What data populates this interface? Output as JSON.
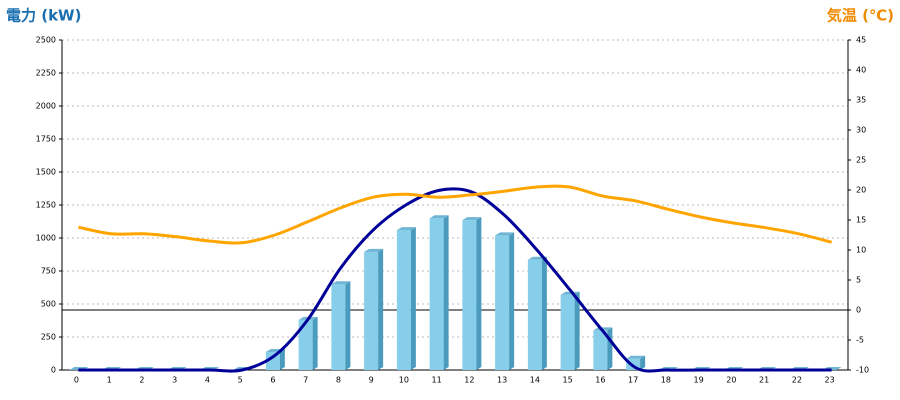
{
  "chart_data": {
    "type": "bar_line",
    "y_label": "電力 (kW)",
    "y2_label": "気温 (℃)",
    "categories": [
      "0",
      "1",
      "2",
      "3",
      "4",
      "5",
      "6",
      "7",
      "8",
      "9",
      "10",
      "11",
      "12",
      "13",
      "14",
      "15",
      "16",
      "17",
      "18",
      "19",
      "20",
      "21",
      "22",
      "23"
    ],
    "series": [
      {
        "type": "bar",
        "color": "#87ceeb",
        "values": [
          0,
          0,
          0,
          0,
          0,
          0,
          136,
          380,
          650,
          895,
          1060,
          1150,
          1135,
          1020,
          835,
          570,
          300,
          85,
          0,
          0,
          0,
          0,
          0,
          0
        ]
      },
      {
        "type": "line",
        "color": "#000099",
        "values": [
          0,
          0,
          0,
          0,
          0,
          0,
          110,
          380,
          770,
          1060,
          1250,
          1360,
          1350,
          1175,
          910,
          610,
          300,
          20,
          0,
          0,
          0,
          0,
          0,
          0
        ]
      },
      {
        "type": "line",
        "color": "#ffa500",
        "axis": "y2",
        "values": [
          13.8,
          12.7,
          12.7,
          12.2,
          11.5,
          11.2,
          12.5,
          14.7,
          17,
          18.8,
          19.3,
          18.8,
          19.2,
          19.8,
          20.5,
          20.5,
          19,
          18.2,
          16.8,
          15.5,
          14.5,
          13.7,
          12.7,
          11.3
        ]
      }
    ],
    "ylim": [
      0,
      2500
    ],
    "yticks": [
      0,
      250,
      500,
      750,
      1000,
      1250,
      1500,
      1750,
      2000,
      2250,
      2500
    ],
    "y2lim": [
      -10,
      45
    ],
    "y2ticks": [
      -10,
      -5,
      0,
      5,
      10,
      15,
      20,
      25,
      30,
      35,
      40,
      45
    ],
    "grid": true
  }
}
